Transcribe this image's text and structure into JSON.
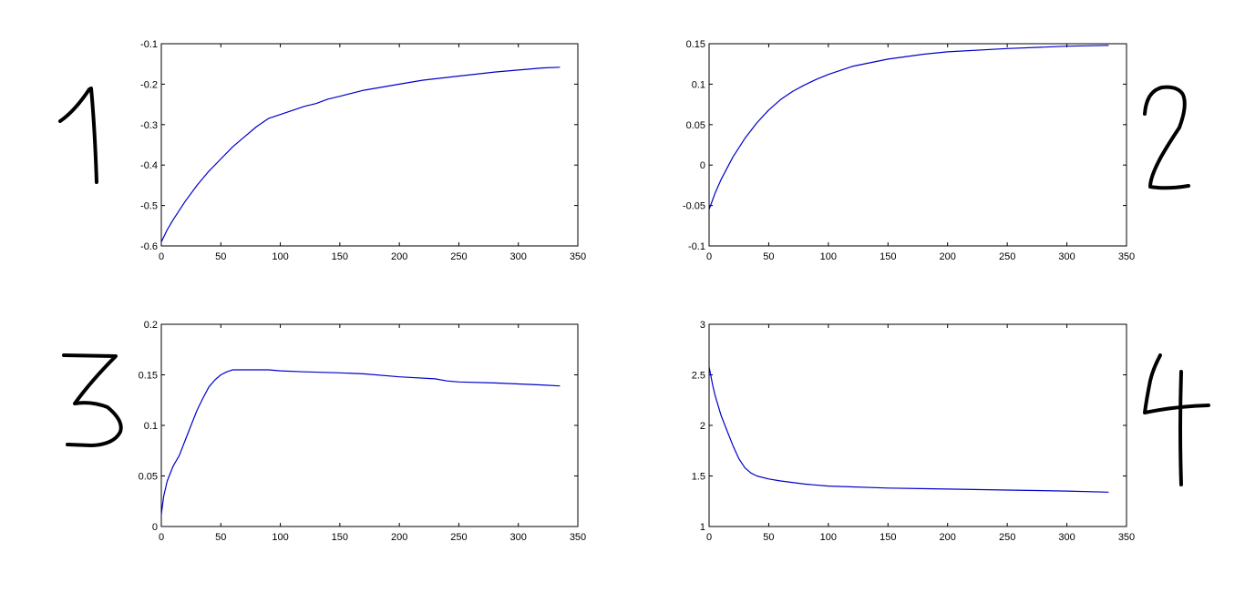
{
  "line_color": "#0000cc",
  "ink_color": "#000000",
  "chart_data": [
    {
      "type": "line",
      "panel_label": "1",
      "title": "",
      "xlabel": "",
      "ylabel": "",
      "xlim": [
        0,
        350
      ],
      "ylim": [
        -0.6,
        -0.1
      ],
      "xticks": [
        0,
        50,
        100,
        150,
        200,
        250,
        300,
        350
      ],
      "yticks": [
        -0.6,
        -0.5,
        -0.4,
        -0.3,
        -0.2,
        -0.1
      ],
      "grid": false,
      "series": [
        {
          "x": [
            0,
            5,
            10,
            20,
            30,
            40,
            50,
            60,
            70,
            80,
            90,
            100,
            110,
            120,
            130,
            140,
            150,
            170,
            200,
            220,
            250,
            280,
            300,
            320,
            335
          ],
          "y": [
            -0.59,
            -0.56,
            -0.535,
            -0.49,
            -0.45,
            -0.415,
            -0.385,
            -0.355,
            -0.33,
            -0.305,
            -0.285,
            -0.275,
            -0.265,
            -0.255,
            -0.248,
            -0.237,
            -0.23,
            -0.215,
            -0.2,
            -0.19,
            -0.18,
            -0.17,
            -0.165,
            -0.16,
            -0.158
          ]
        }
      ]
    },
    {
      "type": "line",
      "panel_label": "2",
      "title": "",
      "xlabel": "",
      "ylabel": "",
      "xlim": [
        0,
        350
      ],
      "ylim": [
        -0.1,
        0.15
      ],
      "xticks": [
        0,
        50,
        100,
        150,
        200,
        250,
        300,
        350
      ],
      "yticks": [
        -0.1,
        -0.05,
        0,
        0.05,
        0.1,
        0.15
      ],
      "grid": false,
      "series": [
        {
          "x": [
            0,
            5,
            10,
            20,
            30,
            40,
            50,
            60,
            70,
            80,
            90,
            100,
            120,
            150,
            180,
            200,
            250,
            300,
            335
          ],
          "y": [
            -0.055,
            -0.035,
            -0.018,
            0.01,
            0.033,
            0.052,
            0.068,
            0.081,
            0.091,
            0.099,
            0.106,
            0.112,
            0.122,
            0.131,
            0.137,
            0.14,
            0.144,
            0.147,
            0.148
          ]
        }
      ]
    },
    {
      "type": "line",
      "panel_label": "3",
      "title": "",
      "xlabel": "",
      "ylabel": "",
      "xlim": [
        0,
        350
      ],
      "ylim": [
        0,
        0.2
      ],
      "xticks": [
        0,
        50,
        100,
        150,
        200,
        250,
        300,
        350
      ],
      "yticks": [
        0,
        0.05,
        0.1,
        0.15,
        0.2
      ],
      "grid": false,
      "series": [
        {
          "x": [
            0,
            2,
            5,
            10,
            15,
            20,
            25,
            30,
            35,
            40,
            45,
            50,
            55,
            60,
            70,
            80,
            90,
            100,
            120,
            150,
            170,
            200,
            230,
            240,
            250,
            280,
            300,
            320,
            335
          ],
          "y": [
            0.012,
            0.03,
            0.045,
            0.06,
            0.07,
            0.085,
            0.1,
            0.115,
            0.127,
            0.138,
            0.145,
            0.15,
            0.153,
            0.155,
            0.155,
            0.155,
            0.155,
            0.154,
            0.153,
            0.152,
            0.151,
            0.148,
            0.146,
            0.144,
            0.143,
            0.142,
            0.141,
            0.14,
            0.139
          ]
        }
      ]
    },
    {
      "type": "line",
      "panel_label": "4",
      "title": "",
      "xlabel": "",
      "ylabel": "",
      "xlim": [
        0,
        350
      ],
      "ylim": [
        1,
        3
      ],
      "xticks": [
        0,
        50,
        100,
        150,
        200,
        250,
        300,
        350
      ],
      "yticks": [
        1,
        1.5,
        2,
        2.5,
        3
      ],
      "grid": false,
      "series": [
        {
          "x": [
            0,
            3,
            5,
            10,
            15,
            20,
            25,
            30,
            35,
            40,
            50,
            60,
            80,
            100,
            150,
            200,
            250,
            300,
            335
          ],
          "y": [
            2.58,
            2.4,
            2.3,
            2.1,
            1.95,
            1.8,
            1.67,
            1.58,
            1.53,
            1.5,
            1.47,
            1.45,
            1.42,
            1.4,
            1.38,
            1.37,
            1.36,
            1.35,
            1.34
          ]
        }
      ]
    }
  ]
}
